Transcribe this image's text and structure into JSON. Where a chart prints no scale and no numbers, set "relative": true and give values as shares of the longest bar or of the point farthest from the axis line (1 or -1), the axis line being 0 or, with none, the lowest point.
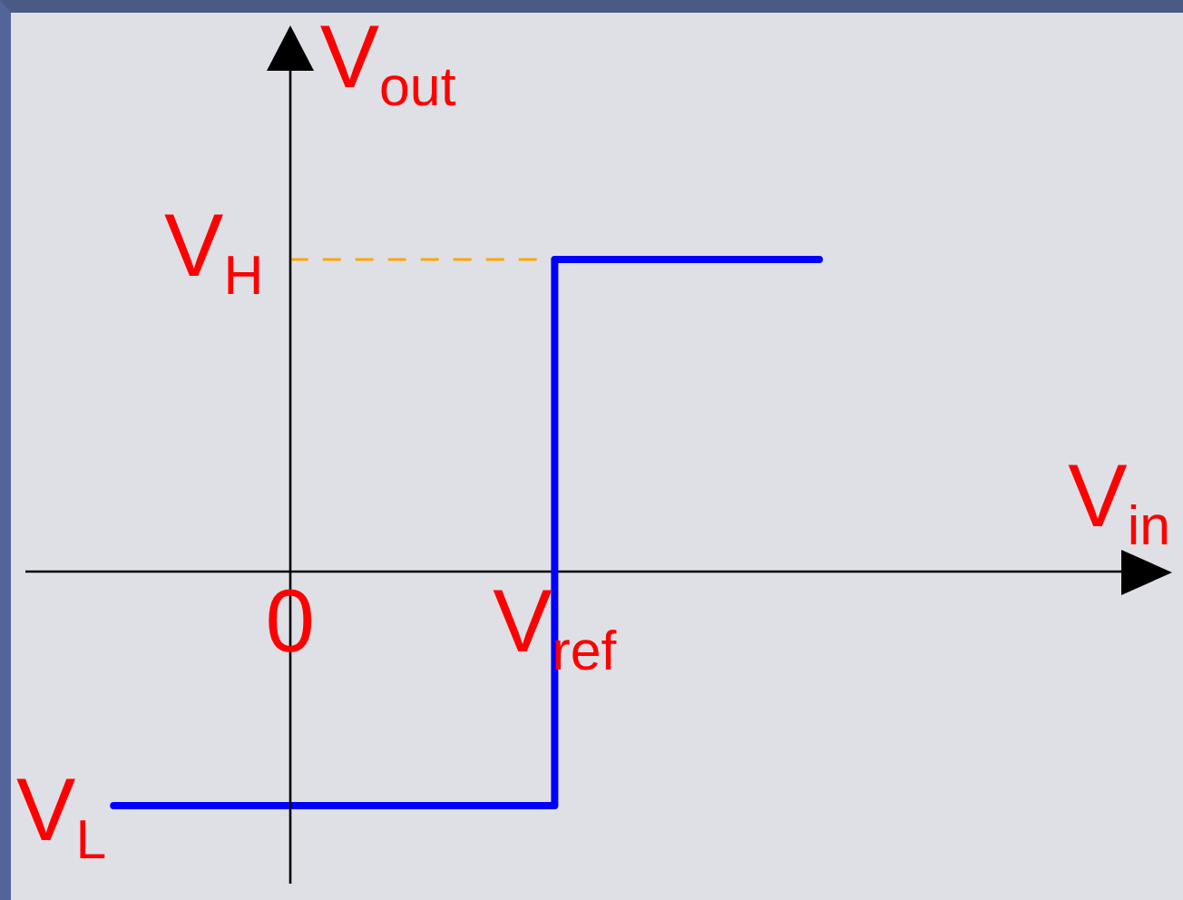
{
  "chart_data": {
    "type": "step",
    "xlabel": "V$_{in}$",
    "ylabel": "V$_{out}$",
    "relative": true,
    "categories": [
      null,
      null,
      null,
      "0",
      null,
      null,
      "V$_{ref}$",
      null,
      null,
      null,
      null,
      null,
      null,
      null
    ],
    "series": [
      {
        "color": "#0000ff",
        "values": [
          null,
          -0.75,
          -0.75,
          -0.75,
          -0.75,
          -0.75,
          1,
          1,
          1,
          1,
          null,
          null,
          null,
          null
        ]
      }
    ],
    "tick_labels": "x",
    "ref_lines": [
      {
        "axis": "y",
        "value": 1,
        "label": "V$_{H}$",
        "color": "#ffa500",
        "line_style": "dashed"
      }
    ],
    "annotations": [
      "V$_{L}$"
    ],
    "marker": "none",
    "line_style": "solid"
  }
}
